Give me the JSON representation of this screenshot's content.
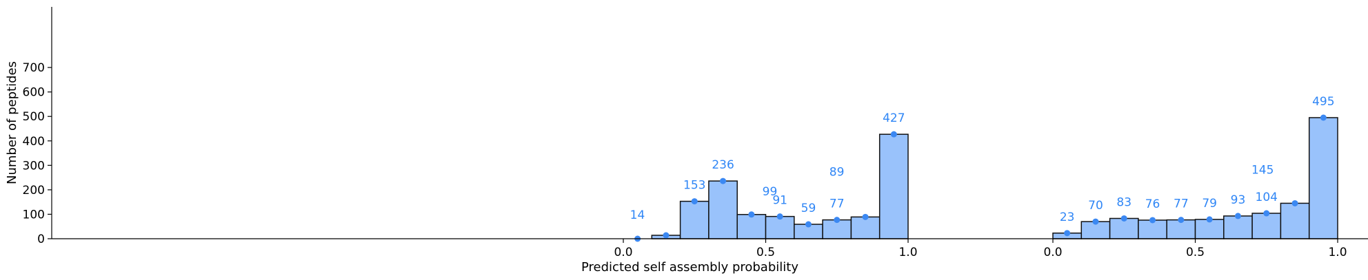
{
  "chart_data": {
    "type": "bar",
    "xlabel": "Predicted self assembly probability",
    "ylabel": "Number of peptides",
    "ylim": [
      0,
      750
    ],
    "yticks": [
      0,
      100,
      200,
      300,
      400,
      500,
      600,
      700
    ],
    "grid": false,
    "colors": {
      "bar_fill": "#99c2fb",
      "bar_edge": "#111111",
      "marker": "#3b88f2",
      "label": "#2f86f6"
    },
    "panels": [
      {
        "xticks": [
          {
            "value": 0.0,
            "label": "0.0"
          },
          {
            "value": 0.5,
            "label": "0.5"
          },
          {
            "value": 1.0,
            "label": "1.0"
          }
        ],
        "bins": [
          {
            "start": 0.0,
            "end": 0.1,
            "value": 0,
            "label": ""
          },
          {
            "start": 0.1,
            "end": 0.2,
            "value": 14,
            "label": "14"
          },
          {
            "start": 0.2,
            "end": 0.3,
            "value": 153,
            "label": "153"
          },
          {
            "start": 0.3,
            "end": 0.4,
            "value": 236,
            "label": "236"
          },
          {
            "start": 0.4,
            "end": 0.5,
            "value": 99,
            "label": "99"
          },
          {
            "start": 0.5,
            "end": 0.6,
            "value": 91,
            "label": "91"
          },
          {
            "start": 0.6,
            "end": 0.7,
            "value": 59,
            "label": "59"
          },
          {
            "start": 0.7,
            "end": 0.8,
            "value": 77,
            "label": "77"
          },
          {
            "start": 0.8,
            "end": 0.9,
            "value": 89,
            "label": "89"
          },
          {
            "start": 0.9,
            "end": 1.0,
            "value": 427,
            "label": "427"
          }
        ]
      },
      {
        "xticks": [
          {
            "value": 0.0,
            "label": "0.0"
          },
          {
            "value": 0.5,
            "label": "0.5"
          },
          {
            "value": 1.0,
            "label": "1.0"
          }
        ],
        "bins": [
          {
            "start": 0.0,
            "end": 0.1,
            "value": 23,
            "label": "23"
          },
          {
            "start": 0.1,
            "end": 0.2,
            "value": 70,
            "label": "70"
          },
          {
            "start": 0.2,
            "end": 0.3,
            "value": 83,
            "label": "83"
          },
          {
            "start": 0.3,
            "end": 0.4,
            "value": 76,
            "label": "76"
          },
          {
            "start": 0.4,
            "end": 0.5,
            "value": 77,
            "label": "77"
          },
          {
            "start": 0.5,
            "end": 0.6,
            "value": 79,
            "label": "79"
          },
          {
            "start": 0.6,
            "end": 0.7,
            "value": 93,
            "label": "93"
          },
          {
            "start": 0.7,
            "end": 0.8,
            "value": 104,
            "label": "104"
          },
          {
            "start": 0.8,
            "end": 0.9,
            "value": 145,
            "label": "145"
          },
          {
            "start": 0.9,
            "end": 1.0,
            "value": 495,
            "label": "495"
          }
        ]
      }
    ]
  }
}
